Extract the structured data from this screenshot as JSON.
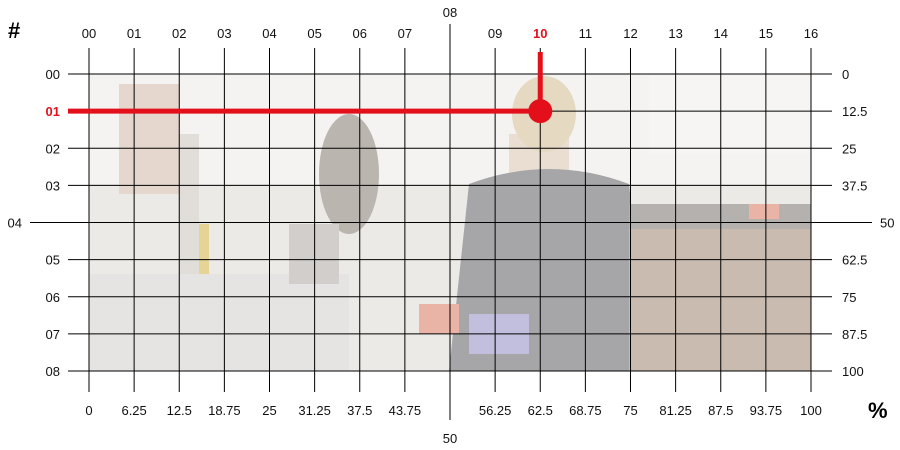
{
  "grid": {
    "col_labels": [
      "00",
      "01",
      "02",
      "03",
      "04",
      "05",
      "06",
      "07",
      "08",
      "09",
      "10",
      "11",
      "12",
      "13",
      "14",
      "15",
      "16"
    ],
    "row_labels": [
      "00",
      "01",
      "02",
      "03",
      "04",
      "05",
      "06",
      "07",
      "08"
    ],
    "bottom_labels": [
      "0",
      "6.25",
      "12.5",
      "18.75",
      "25",
      "31.25",
      "37.5",
      "43.75",
      "50",
      "56.25",
      "62.5",
      "68.75",
      "75",
      "81.25",
      "87.5",
      "93.75",
      "100"
    ],
    "right_labels": [
      "0",
      "12.5",
      "25",
      "37.5",
      "50",
      "62.5",
      "75",
      "87.5",
      "100"
    ],
    "hash_symbol": "#",
    "percent_symbol": "%",
    "highlight": {
      "col": "10",
      "row": "01"
    }
  },
  "colors": {
    "highlight": "#e3101b",
    "grid_line": "#000000"
  },
  "photo": {
    "icon": "lab-photo",
    "description_visible": false
  }
}
